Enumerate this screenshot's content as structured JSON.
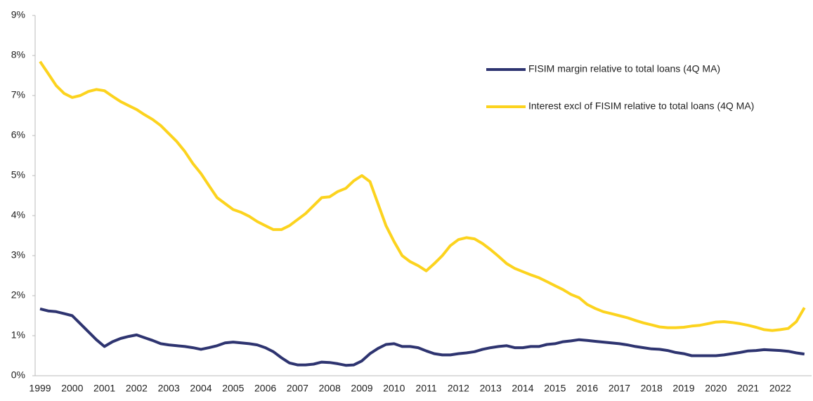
{
  "chart_data": {
    "type": "line",
    "categories": [
      "1999",
      null,
      null,
      null,
      "2000",
      null,
      null,
      null,
      "2001",
      null,
      null,
      null,
      "2002",
      null,
      null,
      null,
      "2003",
      null,
      null,
      null,
      "2004",
      null,
      null,
      null,
      "2005",
      null,
      null,
      null,
      "2006",
      null,
      null,
      null,
      "2007",
      null,
      null,
      null,
      "2008",
      null,
      null,
      null,
      "2009",
      null,
      null,
      null,
      "2010",
      null,
      null,
      null,
      "2011",
      null,
      null,
      null,
      "2012",
      null,
      null,
      null,
      "2013",
      null,
      null,
      null,
      "2014",
      null,
      null,
      null,
      "2015",
      null,
      null,
      null,
      "2016",
      null,
      null,
      null,
      "2017",
      null,
      null,
      null,
      "2018",
      null,
      null,
      null,
      "2019",
      null,
      null,
      null,
      "2020",
      null,
      null,
      null,
      "2021",
      null,
      null,
      null,
      "2022",
      null,
      null,
      null
    ],
    "series": [
      {
        "name": "FISIM margin relative to total loans (4Q MA)",
        "color": "#2e3470",
        "values": [
          1.67,
          1.62,
          1.6,
          1.55,
          1.5,
          1.3,
          1.1,
          0.9,
          0.73,
          0.85,
          0.93,
          0.98,
          1.02,
          0.95,
          0.88,
          0.8,
          0.77,
          0.75,
          0.73,
          0.7,
          0.66,
          0.7,
          0.75,
          0.82,
          0.84,
          0.82,
          0.8,
          0.77,
          0.7,
          0.6,
          0.45,
          0.32,
          0.27,
          0.27,
          0.29,
          0.34,
          0.33,
          0.3,
          0.26,
          0.27,
          0.37,
          0.55,
          0.68,
          0.78,
          0.8,
          0.73,
          0.73,
          0.7,
          0.62,
          0.55,
          0.52,
          0.52,
          0.55,
          0.57,
          0.6,
          0.66,
          0.7,
          0.73,
          0.75,
          0.7,
          0.7,
          0.73,
          0.73,
          0.78,
          0.8,
          0.85,
          0.87,
          0.9,
          0.88,
          0.86,
          0.84,
          0.82,
          0.8,
          0.77,
          0.73,
          0.7,
          0.67,
          0.66,
          0.63,
          0.58,
          0.55,
          0.5,
          0.5,
          0.5,
          0.5,
          0.52,
          0.55,
          0.58,
          0.62,
          0.63,
          0.65,
          0.64,
          0.63,
          0.61,
          0.57,
          0.54
        ]
      },
      {
        "name": "Interest excl of FISIM relative to total loans (4Q MA)",
        "color": "#fcd31e",
        "values": [
          7.85,
          7.55,
          7.25,
          7.05,
          6.95,
          7.0,
          7.1,
          7.15,
          7.12,
          6.98,
          6.85,
          6.75,
          6.65,
          6.52,
          6.4,
          6.25,
          6.05,
          5.85,
          5.6,
          5.3,
          5.05,
          4.75,
          4.45,
          4.3,
          4.15,
          4.08,
          3.98,
          3.85,
          3.75,
          3.65,
          3.65,
          3.75,
          3.9,
          4.05,
          4.25,
          4.45,
          4.47,
          4.6,
          4.68,
          4.87,
          5.0,
          4.85,
          4.3,
          3.75,
          3.35,
          3.0,
          2.85,
          2.75,
          2.62,
          2.8,
          3.0,
          3.25,
          3.4,
          3.45,
          3.42,
          3.3,
          3.15,
          2.98,
          2.8,
          2.68,
          2.6,
          2.52,
          2.45,
          2.35,
          2.25,
          2.15,
          2.03,
          1.95,
          1.78,
          1.68,
          1.6,
          1.55,
          1.5,
          1.45,
          1.38,
          1.32,
          1.27,
          1.22,
          1.2,
          1.2,
          1.21,
          1.24,
          1.26,
          1.3,
          1.34,
          1.35,
          1.33,
          1.3,
          1.26,
          1.21,
          1.15,
          1.13,
          1.15,
          1.18,
          1.35,
          1.7
        ]
      }
    ],
    "ylim": [
      0,
      9
    ],
    "yticks": [
      {
        "value": 0,
        "label": "0%"
      },
      {
        "value": 1,
        "label": "1%"
      },
      {
        "value": 2,
        "label": "2%"
      },
      {
        "value": 3,
        "label": "3%"
      },
      {
        "value": 4,
        "label": "4%"
      },
      {
        "value": 5,
        "label": "5%"
      },
      {
        "value": 6,
        "label": "6%"
      },
      {
        "value": 7,
        "label": "7%"
      },
      {
        "value": 8,
        "label": "8%"
      },
      {
        "value": 9,
        "label": "9%"
      }
    ]
  }
}
